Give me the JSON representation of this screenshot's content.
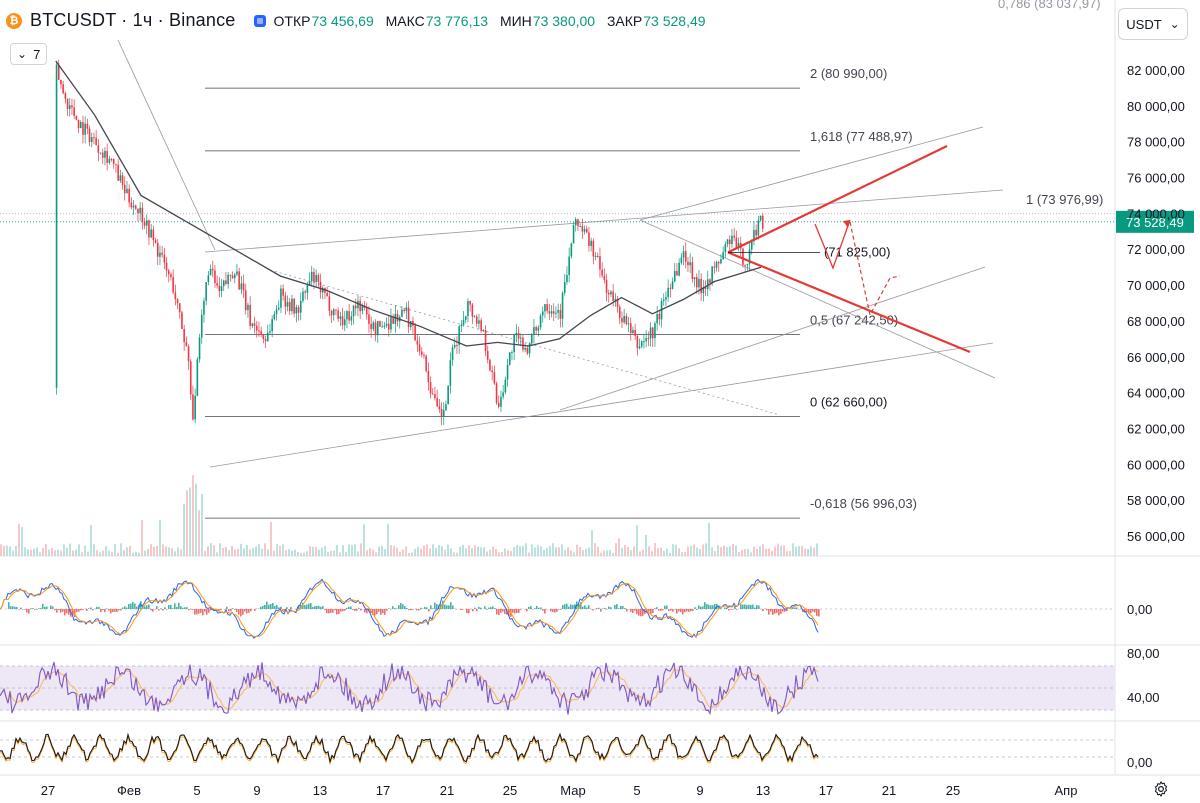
{
  "header": {
    "coin_glyph": "₿",
    "title": "BTCUSDT · 1ч · Binance",
    "ohlc": [
      {
        "key": "ОТКР",
        "value": "73 456,69"
      },
      {
        "key": "МАКС",
        "value": "73 776,13"
      },
      {
        "key": "МИН",
        "value": "73 380,00"
      },
      {
        "key": "ЗАКР",
        "value": "73 528,49"
      }
    ],
    "indicator_count": "7",
    "indicator_toggle_glyph": "⌄"
  },
  "currency_selector": {
    "label": "USDT",
    "arrow": "⌄"
  },
  "colors": {
    "up": "#089981",
    "down": "#f23645",
    "accent": "#2962ff",
    "ma_line": "#434651",
    "triangle": "#e53935",
    "macd_line": "#2962ff",
    "signal_line": "#ff9800",
    "rsi_line": "#7e57c2",
    "rsi_band": "#ede7f6"
  },
  "price_axis": {
    "labels": [
      "82 000,00",
      "80 000,00",
      "78 000,00",
      "76 000,00",
      "74 000,00",
      "72 000,00",
      "70 000,00",
      "68 000,00",
      "66 000,00",
      "64 000,00",
      "62 000,00",
      "60 000,00",
      "58 000,00",
      "56 000,00"
    ],
    "current_price_label": "73 528,49"
  },
  "fib_levels": [
    {
      "label": "2 (80 990,00)",
      "price": 80990
    },
    {
      "label": "1,618 (77 488,97)",
      "price": 77488.97
    },
    {
      "label": "1 (73 976,99)",
      "price": 73976.99
    },
    {
      "label": "(71 825,00)",
      "price": 71825
    },
    {
      "label": "0,5 (67 242,50)",
      "price": 67242.5
    },
    {
      "label": "0 (62 660,00)",
      "price": 62660
    },
    {
      "label": "-0,618 (56 996,03)",
      "price": 56996.03
    }
  ],
  "fib_top_partial_label": "0,786 (83 037,97)",
  "macd_axis": {
    "labels": [
      "0,00"
    ]
  },
  "rsi_axis": {
    "labels": [
      "80,00",
      "40,00"
    ]
  },
  "stoch_axis": {
    "labels": [
      "0,00"
    ]
  },
  "time_axis": {
    "labels": [
      "27",
      "Фев",
      "5",
      "9",
      "13",
      "17",
      "21",
      "25",
      "Мар",
      "5",
      "9",
      "13",
      "17",
      "21",
      "25",
      "Апр"
    ]
  },
  "settings_icon": "gear-icon",
  "chart_data": {
    "type": "candlestick",
    "symbol": "BTCUSDT",
    "interval": "1ч",
    "exchange": "Binance",
    "y_range": [
      55000,
      83500
    ],
    "price_path": [
      [
        27.5,
        82000
      ],
      [
        28.0,
        80500
      ],
      [
        29.0,
        79000
      ],
      [
        30.0,
        78000
      ],
      [
        31.0,
        77000
      ],
      [
        32.0,
        75000
      ],
      [
        33.0,
        74000
      ],
      [
        34.0,
        72000
      ],
      [
        35.0,
        70000
      ],
      [
        36.0,
        66000
      ],
      [
        36.3,
        62700
      ],
      [
        36.8,
        67500
      ],
      [
        37.3,
        71000
      ],
      [
        38.0,
        69500
      ],
      [
        39.0,
        71000
      ],
      [
        40.0,
        68000
      ],
      [
        41.0,
        67000
      ],
      [
        42.0,
        69500
      ],
      [
        43.0,
        68500
      ],
      [
        44.0,
        70500
      ],
      [
        45.0,
        69000
      ],
      [
        46.0,
        68000
      ],
      [
        47.0,
        69000
      ],
      [
        48.0,
        67500
      ],
      [
        49.0,
        68000
      ],
      [
        50.0,
        68500
      ],
      [
        51.0,
        66500
      ],
      [
        52.0,
        63000
      ],
      [
        52.5,
        62700
      ],
      [
        53.0,
        66000
      ],
      [
        54.0,
        69000
      ],
      [
        55.0,
        67500
      ],
      [
        56.0,
        63200
      ],
      [
        57.0,
        67000
      ],
      [
        58.0,
        66500
      ],
      [
        59.0,
        69000
      ],
      [
        60.0,
        68500
      ],
      [
        61.0,
        73700
      ],
      [
        62.0,
        72200
      ],
      [
        63.0,
        69800
      ],
      [
        64.0,
        68200
      ],
      [
        65.0,
        66600
      ],
      [
        66.0,
        67400
      ],
      [
        67.0,
        70000
      ],
      [
        68.0,
        71800
      ],
      [
        69.0,
        69800
      ],
      [
        70.0,
        70900
      ],
      [
        71.0,
        72700
      ],
      [
        72.0,
        71200
      ],
      [
        72.8,
        73700
      ],
      [
        73.1,
        73500
      ]
    ],
    "moving_average": [
      [
        27.5,
        82500
      ],
      [
        30.0,
        79500
      ],
      [
        33.0,
        75000
      ],
      [
        36.0,
        73500
      ],
      [
        39.0,
        72000
      ],
      [
        42.0,
        70500
      ],
      [
        45.0,
        69700
      ],
      [
        48.0,
        68600
      ],
      [
        51.0,
        67700
      ],
      [
        54.0,
        66600
      ],
      [
        56.0,
        66800
      ],
      [
        58.0,
        66600
      ],
      [
        60.0,
        67000
      ],
      [
        62.0,
        68300
      ],
      [
        64.0,
        69300
      ],
      [
        66.0,
        68400
      ],
      [
        68.0,
        69200
      ],
      [
        70.0,
        70200
      ],
      [
        73.0,
        71000
      ]
    ],
    "volume_spike_day": 36.3,
    "oscillators": [
      "MACD",
      "RSI",
      "Stochastic"
    ],
    "rsi_levels": [
      70,
      50,
      30
    ],
    "last_price": 73528.49
  }
}
